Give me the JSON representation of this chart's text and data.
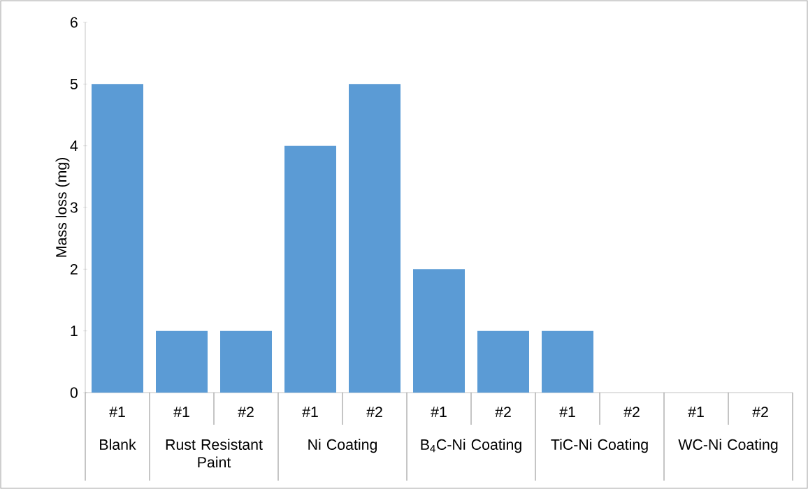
{
  "chart_data": {
    "type": "bar",
    "ylabel": "Mass loss (mg)",
    "categories": [
      "#1",
      "#1",
      "#2",
      "#1",
      "#2",
      "#1",
      "#2",
      "#1",
      "#2",
      "#1",
      "#2"
    ],
    "values": [
      5,
      1,
      1,
      4,
      5,
      2,
      1,
      1,
      0,
      0,
      0
    ],
    "color": "#5b9bd5",
    "ylim": [
      0,
      6
    ],
    "yticks": [
      0,
      1,
      2,
      3,
      4,
      5,
      6
    ],
    "annotations": [
      "Blank",
      "Rust Resistant Paint",
      "Ni Coating",
      "B$_{4}$C-Ni Coating",
      "TiC-Ni Coating",
      "WC-Ni Coating"
    ]
  }
}
